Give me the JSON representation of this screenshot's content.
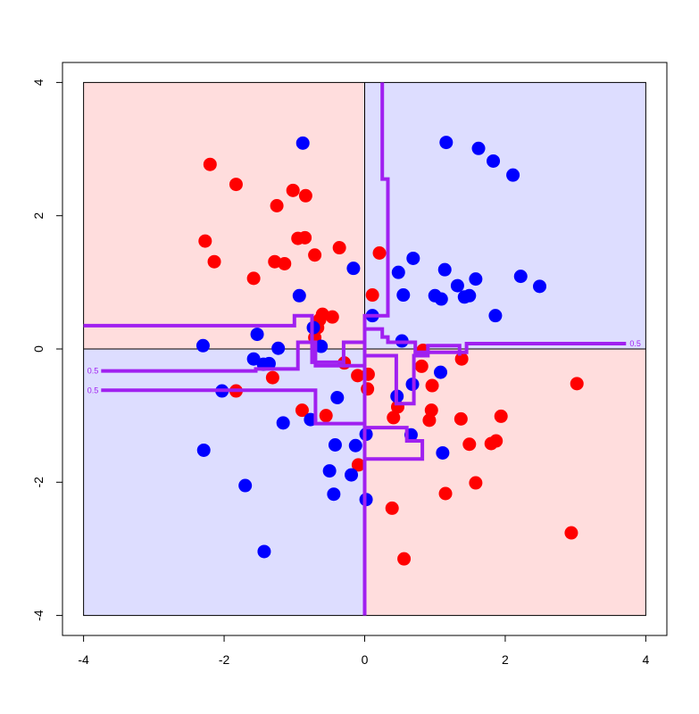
{
  "chart_data": {
    "type": "scatter",
    "title": "",
    "xlabel": "",
    "ylabel": "",
    "xlim": [
      -4.3,
      4.3
    ],
    "ylim": [
      -4.3,
      4.3
    ],
    "xticks": [
      "-4",
      "-2",
      "0",
      "2",
      "4"
    ],
    "xtick_values": [
      -4,
      -2,
      0,
      2,
      4
    ],
    "yticks": [
      "-4",
      "-2",
      "0",
      "2",
      "4"
    ],
    "ytick_values": [
      -4,
      -2,
      0,
      2,
      4
    ],
    "grid": false,
    "legend": "none",
    "colors": {
      "red_point": "#ff0000",
      "blue_point": "#0000ff",
      "red_region": "#ffdddd",
      "blue_region": "#ddddff",
      "boundary": "#a020f0",
      "axes": "#000000"
    },
    "regions": [
      {
        "class": "red",
        "x": [
          -4,
          0
        ],
        "y": [
          0,
          4
        ]
      },
      {
        "class": "blue",
        "x": [
          0,
          4
        ],
        "y": [
          0,
          4
        ]
      },
      {
        "class": "blue",
        "x": [
          -4,
          0
        ],
        "y": [
          -4,
          0
        ]
      },
      {
        "class": "red",
        "x": [
          0,
          4
        ],
        "y": [
          -4,
          0
        ]
      }
    ],
    "reference_lines": {
      "x": 0,
      "y": 0
    },
    "series": [
      {
        "class": "red",
        "points": [
          [
            -2.2,
            2.77
          ],
          [
            -1.83,
            2.47
          ],
          [
            -1.02,
            2.38
          ],
          [
            -0.84,
            2.3
          ],
          [
            -1.25,
            2.15
          ],
          [
            -2.27,
            1.62
          ],
          [
            -0.95,
            1.66
          ],
          [
            -0.85,
            1.67
          ],
          [
            -0.36,
            1.52
          ],
          [
            -0.71,
            1.41
          ],
          [
            -2.14,
            1.31
          ],
          [
            -1.28,
            1.31
          ],
          [
            -1.14,
            1.28
          ],
          [
            -1.58,
            1.06
          ],
          [
            0.21,
            1.44
          ],
          [
            0.11,
            0.81
          ],
          [
            -0.6,
            0.52
          ],
          [
            -0.64,
            0.44
          ],
          [
            -0.46,
            0.48
          ],
          [
            -0.67,
            0.32
          ],
          [
            -0.71,
            0.17
          ],
          [
            -0.29,
            -0.21
          ],
          [
            -0.1,
            -0.4
          ],
          [
            0.05,
            -0.38
          ],
          [
            0.04,
            -0.6
          ],
          [
            -1.83,
            -0.63
          ],
          [
            -1.31,
            -0.43
          ],
          [
            0.83,
            -0.02
          ],
          [
            0.81,
            -0.26
          ],
          [
            1.38,
            -0.15
          ],
          [
            0.96,
            -0.55
          ],
          [
            0.47,
            -0.87
          ],
          [
            0.41,
            -1.03
          ],
          [
            0.95,
            -0.92
          ],
          [
            0.92,
            -1.07
          ],
          [
            1.37,
            -1.05
          ],
          [
            1.94,
            -1.01
          ],
          [
            1.49,
            -1.43
          ],
          [
            1.8,
            -1.42
          ],
          [
            1.87,
            -1.38
          ],
          [
            -0.89,
            -0.92
          ],
          [
            -0.55,
            -1.0
          ],
          [
            -0.09,
            -1.74
          ],
          [
            1.15,
            -2.17
          ],
          [
            1.58,
            -2.01
          ],
          [
            0.39,
            -2.39
          ],
          [
            0.56,
            -3.15
          ],
          [
            2.94,
            -2.76
          ],
          [
            3.02,
            -0.52
          ]
        ]
      },
      {
        "class": "blue",
        "points": [
          [
            -0.88,
            3.09
          ],
          [
            1.16,
            3.1
          ],
          [
            1.62,
            3.01
          ],
          [
            1.83,
            2.82
          ],
          [
            2.11,
            2.61
          ],
          [
            -0.16,
            1.21
          ],
          [
            0.69,
            1.36
          ],
          [
            1.14,
            1.19
          ],
          [
            0.48,
            1.15
          ],
          [
            1.58,
            1.05
          ],
          [
            2.22,
            1.09
          ],
          [
            2.49,
            0.94
          ],
          [
            1.32,
            0.95
          ],
          [
            0.55,
            0.81
          ],
          [
            1.0,
            0.8
          ],
          [
            1.09,
            0.75
          ],
          [
            1.42,
            0.78
          ],
          [
            1.49,
            0.8
          ],
          [
            -0.93,
            0.8
          ],
          [
            0.11,
            0.5
          ],
          [
            1.86,
            0.5
          ],
          [
            0.53,
            0.12
          ],
          [
            -2.3,
            0.05
          ],
          [
            -1.53,
            0.22
          ],
          [
            -1.23,
            0.01
          ],
          [
            -0.62,
            0.04
          ],
          [
            -0.73,
            0.32
          ],
          [
            -1.58,
            -0.15
          ],
          [
            -1.44,
            -0.23
          ],
          [
            -1.36,
            -0.22
          ],
          [
            1.08,
            -0.35
          ],
          [
            0.46,
            -0.71
          ],
          [
            0.68,
            -0.53
          ],
          [
            -2.03,
            -0.63
          ],
          [
            -0.39,
            -0.73
          ],
          [
            -0.77,
            -1.06
          ],
          [
            -1.16,
            -1.11
          ],
          [
            -0.42,
            -1.44
          ],
          [
            0.02,
            -1.28
          ],
          [
            0.66,
            -1.29
          ],
          [
            -0.13,
            -1.45
          ],
          [
            1.11,
            -1.56
          ],
          [
            -2.29,
            -1.52
          ],
          [
            -0.5,
            -1.83
          ],
          [
            -0.19,
            -1.89
          ],
          [
            -1.7,
            -2.05
          ],
          [
            -0.44,
            -2.18
          ],
          [
            0.02,
            -2.26
          ],
          [
            -1.43,
            -3.04
          ]
        ]
      }
    ],
    "decision_boundaries": [
      {
        "label": "",
        "points": [
          [
            0.25,
            4.0
          ],
          [
            0.25,
            2.55
          ],
          [
            0.33,
            2.55
          ],
          [
            0.33,
            0.5
          ],
          [
            0.0,
            0.5
          ],
          [
            0.0,
            -4.0
          ]
        ]
      },
      {
        "label": "0.5",
        "points": [
          [
            -4.0,
            0.35
          ],
          [
            -1.0,
            0.35
          ],
          [
            -1.0,
            0.5
          ],
          [
            -0.75,
            0.5
          ],
          [
            -0.75,
            -0.2
          ],
          [
            -0.3,
            -0.2
          ],
          [
            -0.3,
            0.1
          ],
          [
            0.0,
            0.1
          ],
          [
            0.0,
            0.3
          ],
          [
            0.25,
            0.3
          ],
          [
            0.25,
            0.18
          ],
          [
            0.33,
            0.18
          ],
          [
            0.33,
            0.1
          ],
          [
            0.72,
            0.1
          ],
          [
            0.72,
            -0.05
          ],
          [
            1.45,
            -0.05
          ],
          [
            1.45,
            0.08
          ],
          [
            3.72,
            0.08
          ]
        ]
      },
      {
        "label": "0.5",
        "points": [
          [
            -3.75,
            -0.33
          ],
          [
            -1.55,
            -0.33
          ],
          [
            -1.55,
            -0.3
          ],
          [
            -0.95,
            -0.3
          ],
          [
            -0.95,
            0.1
          ],
          [
            -0.7,
            0.1
          ],
          [
            -0.7,
            -0.25
          ],
          [
            0.0,
            -0.25
          ],
          [
            0.0,
            -0.1
          ],
          [
            0.45,
            -0.1
          ],
          [
            0.45,
            -0.82
          ],
          [
            0.7,
            -0.82
          ],
          [
            0.7,
            -0.1
          ],
          [
            0.9,
            -0.1
          ],
          [
            0.9,
            0.05
          ],
          [
            1.35,
            0.05
          ],
          [
            1.35,
            -0.1
          ]
        ]
      },
      {
        "label": "0.5",
        "points": [
          [
            -3.75,
            -0.62
          ],
          [
            -0.7,
            -0.62
          ],
          [
            -0.7,
            -1.12
          ],
          [
            0.0,
            -1.12
          ],
          [
            0.0,
            -1.18
          ],
          [
            0.6,
            -1.18
          ],
          [
            0.6,
            -1.38
          ],
          [
            0.82,
            -1.38
          ],
          [
            0.82,
            -1.65
          ],
          [
            0.0,
            -1.65
          ]
        ]
      }
    ]
  }
}
